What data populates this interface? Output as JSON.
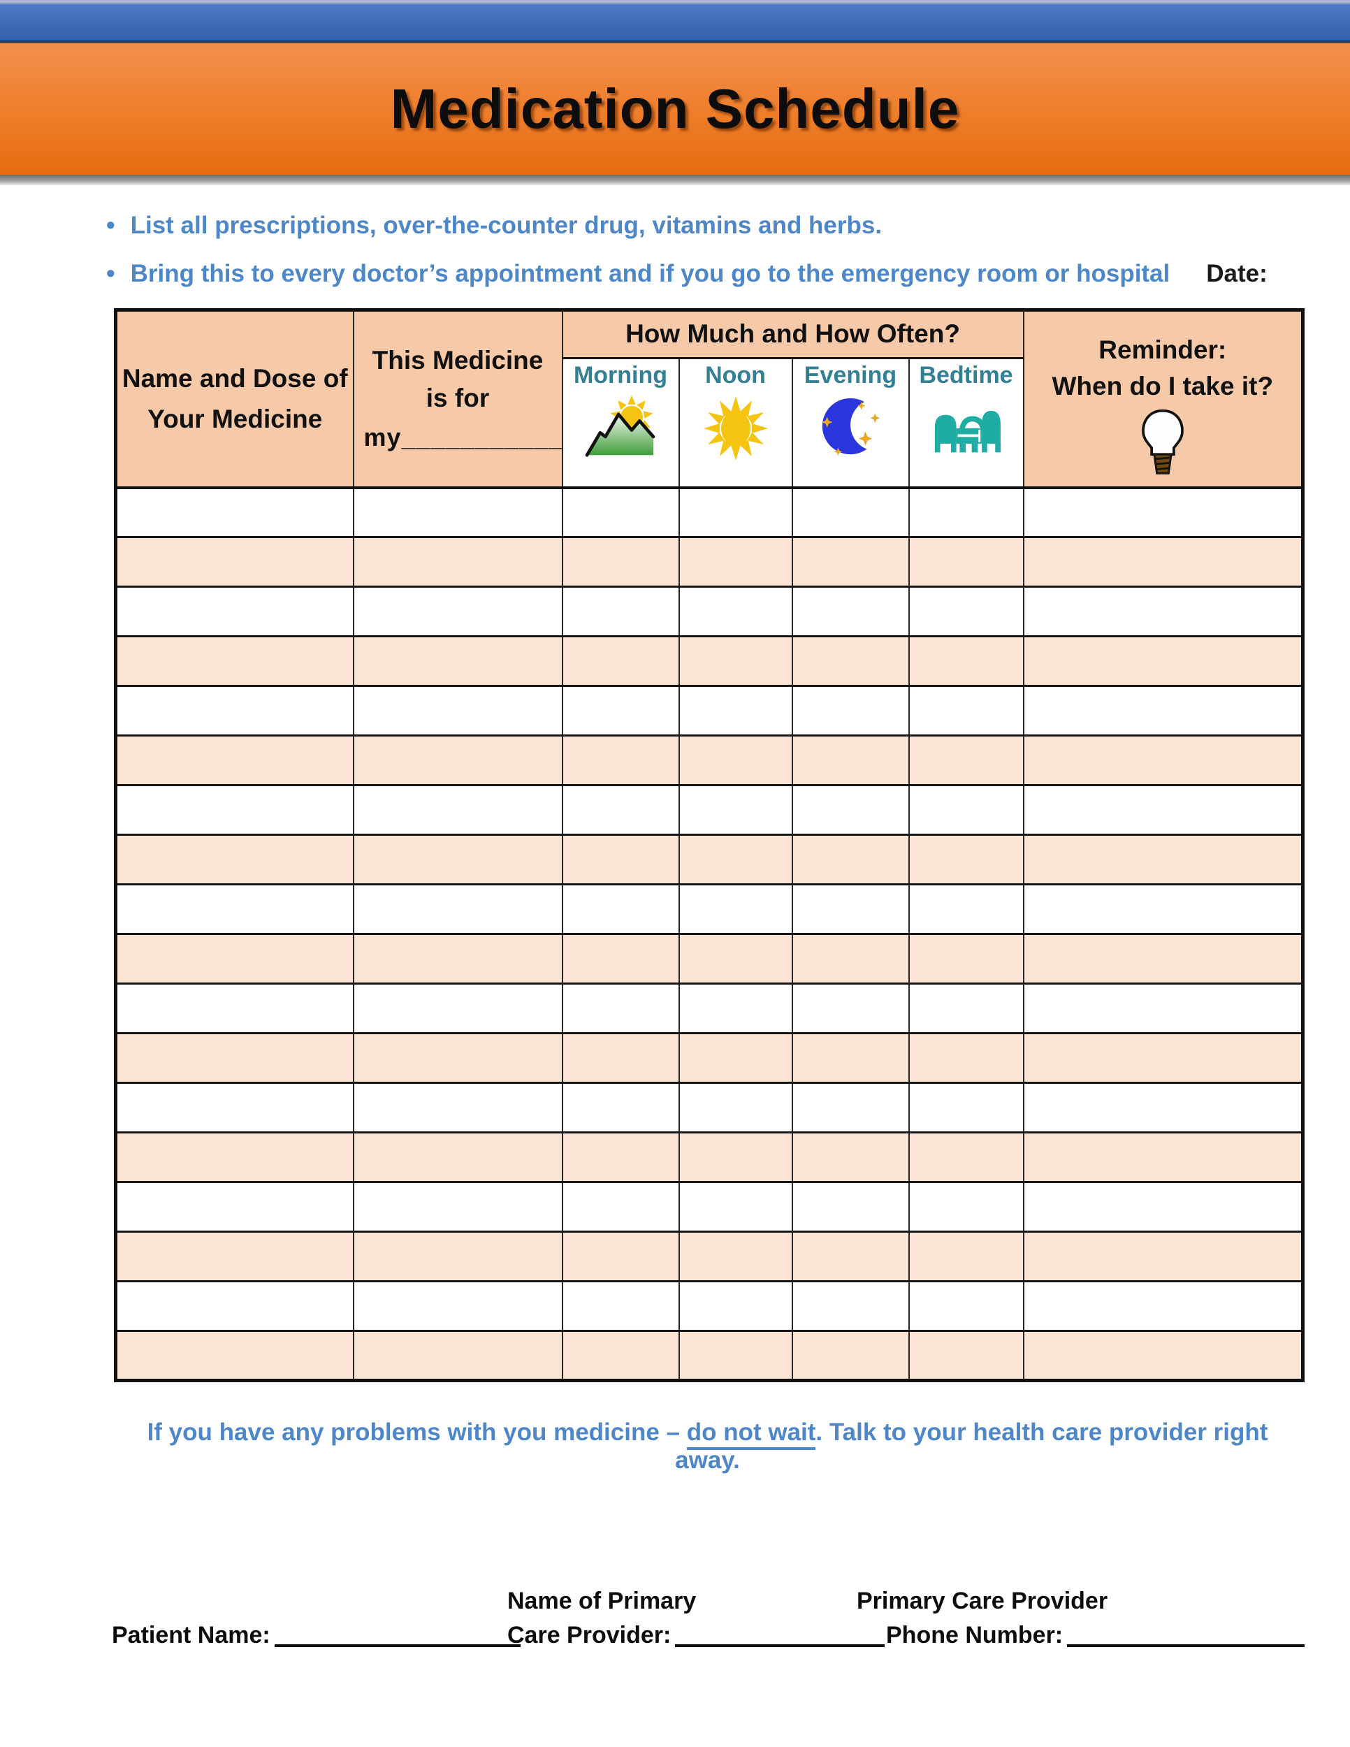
{
  "banner": {
    "title": "Medication Schedule"
  },
  "intro": {
    "bullet_glyph": "•",
    "bullets": [
      "List all prescriptions, over-the-counter drug, vitamins and herbs.",
      "Bring this to every doctor’s appointment and if you go to the emergency room or hospital"
    ],
    "date_label": "Date:"
  },
  "table": {
    "row_count": 18,
    "columns": 7,
    "name_col_line1": "Name and Dose of",
    "name_col_line2": "Your Medicine",
    "for_col_line1": "This Medicine",
    "for_col_line2": "is for",
    "for_col_blank": "my_____________",
    "how_much_header": "How Much and How Often?",
    "times": [
      {
        "label": "Morning",
        "icon": "morning-sun-over-mountains-icon"
      },
      {
        "label": "Noon",
        "icon": "noon-sun-icon"
      },
      {
        "label": "Evening",
        "icon": "evening-crescent-moon-icon"
      },
      {
        "label": "Bedtime",
        "icon": "bedtime-bed-icon"
      }
    ],
    "reminder_line1": "Reminder:",
    "reminder_line2": "When do I take it?",
    "reminder_icon": "lightbulb-icon"
  },
  "note": {
    "prefix": "If you have any problems with you medicine – ",
    "underlined": "do not wait",
    "suffix": ". Talk to your health care provider right away."
  },
  "signature": {
    "patient_label": "Patient Name:",
    "provider_line1": "Name of Primary",
    "provider_line2": "Care Provider:",
    "phone_line1": "Primary Care Provider",
    "phone_line2": "Phone Number:"
  },
  "colors": {
    "top_bar_blue": "#3c69b6",
    "banner_orange_top": "#f3904e",
    "banner_orange_bottom": "#e56c0f",
    "header_cell_peach": "#f6c9a8",
    "row_alt_peach": "#fbe4d4",
    "intro_text_blue": "#4e87c7",
    "time_label_teal": "#337f93",
    "sun_yellow": "#f5c411",
    "moon_blue": "#2b35dd",
    "star_gold": "#eaa820",
    "bed_teal": "#1faca4",
    "bulb_base_brown": "#6e4a12"
  }
}
